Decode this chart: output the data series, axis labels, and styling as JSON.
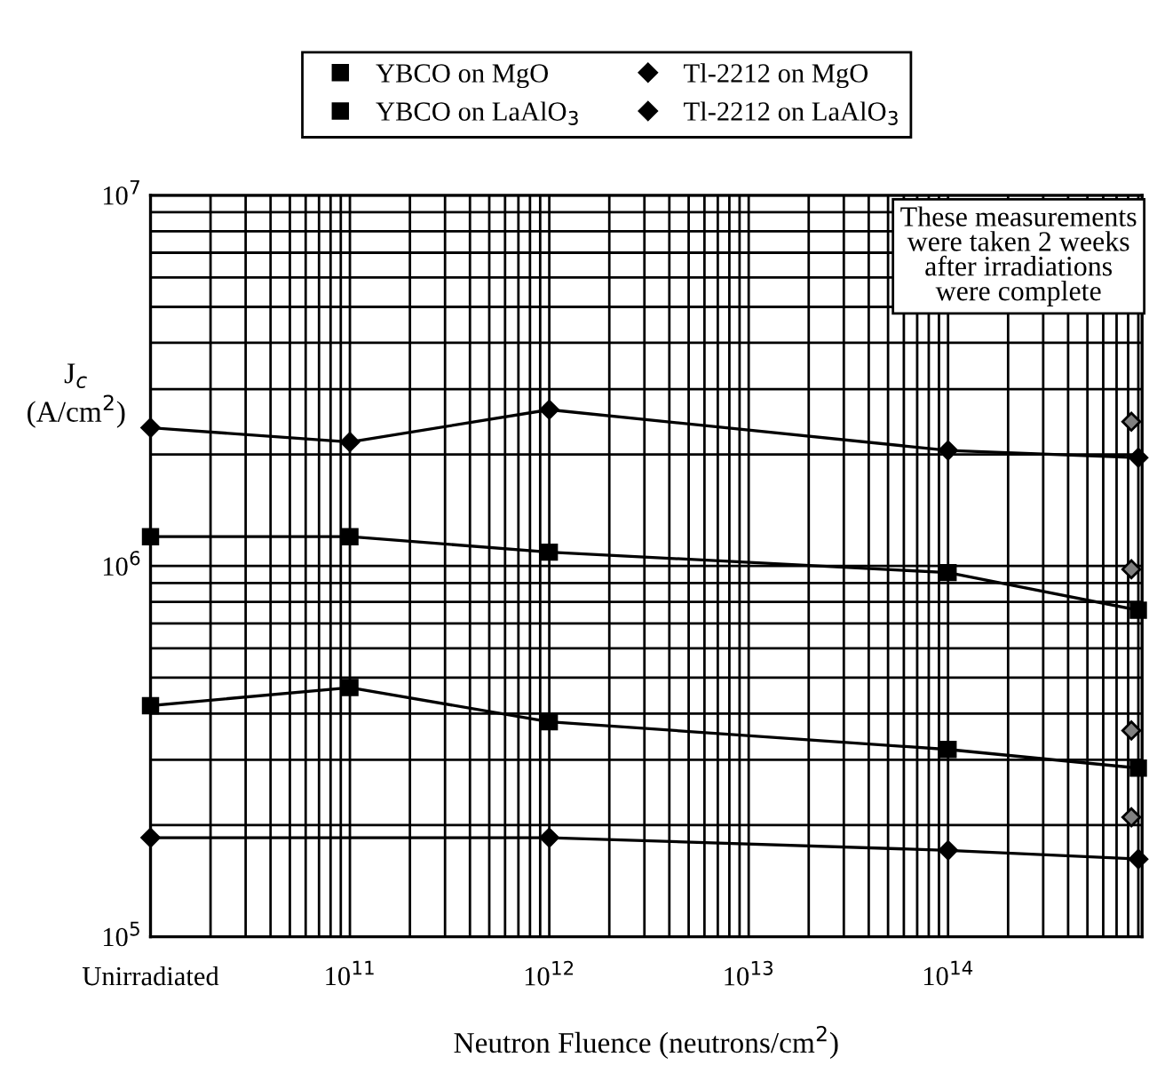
{
  "chart_data": {
    "type": "line",
    "xlabel": "Neutron Fluence (neutrons/cm$^{2}$)",
    "ylabel": "J$_{c}$\n(A/cm$^{2}$)",
    "log": "xy",
    "xlim": [
      10000000000.0,
      940000000000000.0
    ],
    "ylim": [
      100000.0,
      10000000.0
    ],
    "xticks": [
      {
        "value": 10000000000.0,
        "label": "Unirradiated"
      },
      {
        "value": 100000000000.0,
        "label": "10$^{11}$"
      },
      {
        "value": 1000000000000.0,
        "label": "10$^{12}$"
      },
      {
        "value": 10000000000000.0,
        "label": "10$^{13}$"
      },
      {
        "value": 100000000000000.0,
        "label": "10$^{14}$"
      }
    ],
    "yticks": [
      {
        "value": 100000.0,
        "label": "10$^{5}$"
      },
      {
        "value": 1000000.0,
        "label": "10$^{6}$"
      },
      {
        "value": 10000000.0,
        "label": "10$^{7}$"
      }
    ],
    "grid": true,
    "legend": "top",
    "series": [
      {
        "name": "YBCO on MgO",
        "color": "#000000",
        "marker": "square",
        "x": [
          10000000000.0,
          100000000000.0,
          1000000000000.0,
          100000000000000.0,
          900000000000000.0
        ],
        "values": [
          420000,
          470000,
          380000,
          320000,
          285000
        ]
      },
      {
        "name": "YBCO on LaAlO$_{3}$",
        "color": "#000000",
        "marker": "square",
        "x": [
          10000000000.0,
          100000000000.0,
          1000000000000.0,
          100000000000000.0,
          900000000000000.0
        ],
        "values": [
          1200000,
          1200000,
          1090000,
          960000,
          760000
        ]
      },
      {
        "name": "Tl-2212 on MgO",
        "color": "#000000",
        "marker": "diamond",
        "x": [
          10000000000.0,
          1000000000000.0,
          100000000000000.0,
          900000000000000.0
        ],
        "values": [
          185000,
          185000,
          171000,
          162000
        ]
      },
      {
        "name": "Tl-2212 on LaAlO$_{3}$",
        "color": "#000000",
        "marker": "diamond",
        "x": [
          10000000000.0,
          100000000000.0,
          1000000000000.0,
          100000000000000.0,
          900000000000000.0
        ],
        "values": [
          2360000,
          2160000,
          2640000,
          2050000,
          1960000
        ]
      },
      {
        "type": "scatter",
        "color": "#808080",
        "marker": "diamond",
        "x": [
          830000000000000.0,
          830000000000000.0,
          830000000000000.0,
          830000000000000.0
        ],
        "values": [
          2450000,
          980000,
          360000,
          210000
        ]
      }
    ],
    "annotations": [
      "These measurements\nwere taken 2 weeks\nafter irradiations\nwere complete"
    ]
  }
}
